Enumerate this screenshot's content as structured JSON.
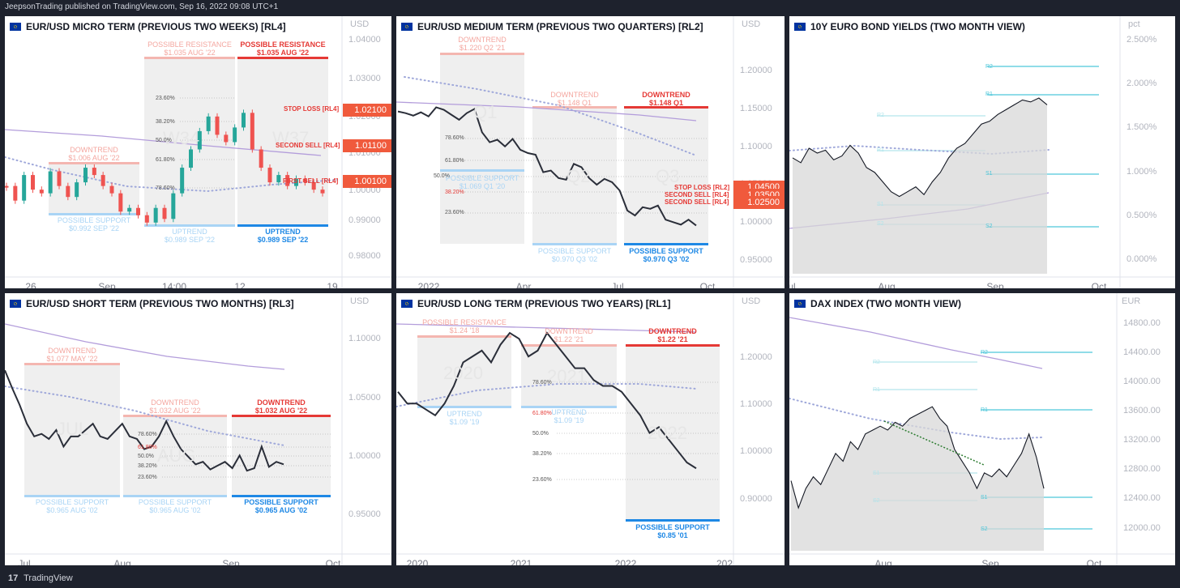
{
  "header": {
    "publisher": "JeepsonTrading published on TradingView.com, Sep 16, 2022 09:08 UTC+1"
  },
  "footer": {
    "brand": "TradingView"
  },
  "colors": {
    "resistance_light": "#f4b6b0",
    "resistance": "#e53935",
    "support_light": "#a9d4f5",
    "support": "#1e88e5",
    "band": "#efefef",
    "ma_solid": "#b39ddb",
    "ma_dotted": "#9fa8da",
    "price": "#2a2e39",
    "price_box": "#f05a3c",
    "levels": "#4dc6d9"
  },
  "panels": {
    "micro": {
      "title": "EUR/USD MICRO TERM (PREVIOUS TWO WEEKS) [RL4]",
      "unit": "USD",
      "yticks": [
        "1.04000",
        "1.03000",
        "1.02000",
        "1.01000",
        "1.00000",
        "0.99000",
        "0.98000"
      ],
      "xticks": [
        "26",
        "Sep",
        "14:00",
        "12",
        "19"
      ],
      "watermarks": [
        "W34",
        "W37"
      ],
      "zones": [
        {
          "top": "POSSIBLE RESISTANCE",
          "top_sub": "$1.035 AUG '22"
        },
        {
          "top": "POSSIBLE RESISTANCE",
          "top_sub": "$1.035 AUG '22"
        },
        {
          "top": "DOWNTREND",
          "top_sub": "$1.006 AUG '22"
        },
        {
          "bottom": "POSSIBLE SUPPORT",
          "bottom_sub": "$0.992 SEP '22"
        },
        {
          "bottom": "UPTREND",
          "bottom_sub": "$0.989 SEP '22"
        },
        {
          "bottom": "UPTREND",
          "bottom_sub": "$0.989 SEP '22"
        }
      ],
      "fibs": [
        "23.60%",
        "38.20%",
        "50.0%",
        "61.80%",
        "78.60%"
      ],
      "side_labels": [
        "STOP LOSS [RL4]",
        "SECOND SELL [RL4]",
        "FIRST SELL [RL4]"
      ],
      "price_boxes": [
        "1.02100",
        "1.01100",
        "1.00100"
      ]
    },
    "medium": {
      "title": "EUR/USD MEDIUM TERM (PREVIOUS TWO QUARTERS) [RL2]",
      "unit": "USD",
      "yticks": [
        "1.20000",
        "1.15000",
        "1.10000",
        "1.05000",
        "1.00000",
        "0.95000"
      ],
      "xticks": [
        "2022",
        "Apr",
        "Jul",
        "Oct"
      ],
      "watermarks": [
        "Q1",
        "Q2",
        "Q3"
      ],
      "zones": [
        {
          "top": "DOWNTREND",
          "top_sub": "$1.220 Q2 '21"
        },
        {
          "top": "DOWNTREND",
          "top_sub": "$1.148 Q1"
        },
        {
          "top": "DOWNTREND",
          "top_sub": "$1.148 Q1"
        },
        {
          "bottom": "POSSIBLE SUPPORT",
          "bottom_sub": "$1.069 Q1 '20"
        },
        {
          "bottom": "POSSIBLE SUPPORT",
          "bottom_sub": "$0.970 Q3 '02"
        },
        {
          "bottom": "POSSIBLE SUPPORT",
          "bottom_sub": "$0.970 Q3 '02"
        }
      ],
      "fibs": [
        "78.60%",
        "61.80%",
        "50.0%",
        "38.20%",
        "23.60%"
      ],
      "side_labels": [
        "STOP LOSS [RL2]",
        "SECOND SELL [RL4]",
        "SECOND SELL [RL4]"
      ],
      "price_boxes": [
        "1.04500",
        "1.03500",
        "1.02500"
      ]
    },
    "bond": {
      "title": "10Y EURO BOND YIELDS (TWO MONTH VIEW)",
      "unit": "pct",
      "yticks": [
        "2.500%",
        "2.000%",
        "1.500%",
        "1.000%",
        "0.500%",
        "0.000%"
      ],
      "xticks": [
        "Jul",
        "Aug",
        "Sep",
        "Oct"
      ],
      "levels": [
        "R2",
        "R1",
        "R2",
        "R1",
        "S1",
        "S1",
        "S2",
        "S2"
      ]
    },
    "short": {
      "title": "EUR/USD SHORT TERM (PREVIOUS TWO MONTHS) [RL3]",
      "unit": "USD",
      "yticks": [
        "1.10000",
        "1.05000",
        "1.00000",
        "0.95000"
      ],
      "xticks": [
        "Jul",
        "Aug",
        "Sep",
        "Oct"
      ],
      "watermarks": [
        "JUL",
        "AUG"
      ],
      "zones": [
        {
          "top": "DOWNTREND",
          "top_sub": "$1.077 MAY '22"
        },
        {
          "top": "DOWNTREND",
          "top_sub": "$1.032 AUG '22"
        },
        {
          "top": "DOWNTREND",
          "top_sub": "$1.032 AUG '22"
        },
        {
          "bottom": "POSSIBLE SUPPORT",
          "bottom_sub": "$0.965 AUG '02"
        },
        {
          "bottom": "POSSIBLE SUPPORT",
          "bottom_sub": "$0.965 AUG '02"
        },
        {
          "bottom": "POSSIBLE SUPPORT",
          "bottom_sub": "$0.965 AUG '02"
        }
      ],
      "fibs": [
        "78.60%",
        "61.80%",
        "50.0%",
        "38.20%",
        "23.60%"
      ]
    },
    "long": {
      "title": "EUR/USD LONG TERM (PREVIOUS TWO YEARS) [RL1]",
      "unit": "USD",
      "yticks": [
        "1.20000",
        "1.10000",
        "1.00000",
        "0.90000"
      ],
      "xticks": [
        "2020",
        "2021",
        "2022",
        "202"
      ],
      "watermarks": [
        "2020",
        "2021",
        "2022"
      ],
      "zones": [
        {
          "top": "POSSIBLE RESISTANCE",
          "top_sub": "$1.24 '18"
        },
        {
          "top": "DOWNTREND",
          "top_sub": "$1.22 '21"
        },
        {
          "top": "DOWNTREND",
          "top_sub": "$1.22 '21"
        },
        {
          "bottom": "UPTREND",
          "bottom_sub": "$1.09 '19"
        },
        {
          "bottom": "UPTREND",
          "bottom_sub": "$1.09 '19"
        },
        {
          "bottom": "POSSIBLE SUPPORT",
          "bottom_sub": "$0.85 '01"
        }
      ],
      "fibs": [
        "78.60%",
        "61.80%",
        "50.0%",
        "38.20%",
        "23.60%"
      ]
    },
    "dax": {
      "title": "DAX INDEX (TWO MONTH VIEW)",
      "unit": "EUR",
      "yticks": [
        "14800.00",
        "14400.00",
        "14000.00",
        "13600.00",
        "13200.00",
        "12800.00",
        "12400.00",
        "12000.00"
      ],
      "xticks": [
        "Aug",
        "Sep",
        "Oct"
      ],
      "levels": [
        "R2",
        "R2",
        "R1",
        "R1",
        "S1",
        "S1",
        "S2",
        "S2"
      ]
    }
  },
  "chart_data": [
    {
      "type": "line",
      "title": "EUR/USD MICRO TERM (PREVIOUS TWO WEEKS) [RL4]",
      "ylabel": "USD",
      "ylim": [
        0.976,
        1.042
      ],
      "y": [
        1.0,
        0.996,
        1.003,
        0.999,
        0.998,
        1.004,
        1.0,
        0.997,
        1.001,
        1.005,
        1.003,
        1.0,
        0.998,
        0.993,
        0.994,
        0.992,
        0.99,
        0.994,
        0.991,
        0.998,
        1.005,
        1.01,
        1.015,
        1.019,
        1.014,
        1.012,
        1.016,
        1.02,
        1.01,
        1.005,
        1.001,
        1.003,
        1.0,
        1.002,
        1.001,
        0.999,
        0.998
      ]
    },
    {
      "type": "line",
      "title": "EUR/USD MEDIUM TERM (PREVIOUS TWO QUARTERS) [RL2]",
      "ylabel": "USD",
      "ylim": [
        0.94,
        1.23
      ],
      "y": [
        1.135,
        1.133,
        1.13,
        1.134,
        1.129,
        1.14,
        1.137,
        1.131,
        1.125,
        1.133,
        1.138,
        1.11,
        1.098,
        1.101,
        1.093,
        1.102,
        1.089,
        1.085,
        1.083,
        1.062,
        1.064,
        1.055,
        1.053,
        1.072,
        1.068,
        1.055,
        1.047,
        1.054,
        1.05,
        1.04,
        1.016,
        1.01,
        1.02,
        1.018,
        1.022,
        1.005,
        1.002,
        0.999,
        1.005,
        0.998
      ]
    },
    {
      "type": "line",
      "title": "10Y EURO BOND YIELDS (TWO MONTH VIEW)",
      "ylabel": "pct",
      "ylim": [
        0.0,
        2.5
      ],
      "y": [
        1.2,
        1.15,
        1.3,
        1.25,
        1.28,
        1.18,
        1.22,
        1.33,
        1.25,
        1.1,
        1.05,
        0.95,
        0.85,
        0.8,
        0.85,
        0.9,
        0.82,
        0.95,
        1.05,
        1.2,
        1.3,
        1.35,
        1.45,
        1.55,
        1.58,
        1.65,
        1.7,
        1.75,
        1.8,
        1.78,
        1.82,
        1.75
      ]
    },
    {
      "type": "line",
      "title": "EUR/USD SHORT TERM (PREVIOUS TWO MONTHS) [RL3]",
      "ylabel": "USD",
      "ylim": [
        0.93,
        1.12
      ],
      "y": [
        1.072,
        1.058,
        1.045,
        1.03,
        1.02,
        1.022,
        1.018,
        1.025,
        1.012,
        1.02,
        1.02,
        1.025,
        1.03,
        1.02,
        1.018,
        1.024,
        1.03,
        1.02,
        1.018,
        1.01,
        1.012,
        1.02,
        1.032,
        1.02,
        1.01,
        1.004,
        0.998,
        1.0,
        0.994,
        0.997,
        1.0,
        0.995,
        1.005,
        0.993,
        0.995,
        1.012,
        0.996,
        1.0,
        0.998
      ]
    },
    {
      "type": "line",
      "title": "EUR/USD LONG TERM (PREVIOUS TWO YEARS) [RL1]",
      "ylabel": "USD",
      "ylim": [
        0.85,
        1.26
      ],
      "y": [
        1.12,
        1.1,
        1.1,
        1.09,
        1.08,
        1.1,
        1.13,
        1.17,
        1.18,
        1.19,
        1.17,
        1.2,
        1.22,
        1.21,
        1.18,
        1.19,
        1.22,
        1.2,
        1.18,
        1.16,
        1.16,
        1.14,
        1.13,
        1.13,
        1.12,
        1.1,
        1.08,
        1.05,
        1.06,
        1.04,
        1.02,
        1.0,
        0.99
      ]
    },
    {
      "type": "area",
      "title": "DAX INDEX (TWO MONTH VIEW)",
      "ylabel": "EUR",
      "ylim": [
        11900,
        15000
      ],
      "y": [
        12800,
        12450,
        12700,
        12850,
        12750,
        12950,
        13150,
        13050,
        13300,
        13200,
        13400,
        13450,
        13500,
        13450,
        13550,
        13500,
        13600,
        13650,
        13700,
        13750,
        13600,
        13500,
        13200,
        13050,
        12900,
        12700,
        12900,
        12850,
        12950,
        12850,
        13000,
        13150,
        13400,
        13100,
        12700
      ]
    }
  ]
}
